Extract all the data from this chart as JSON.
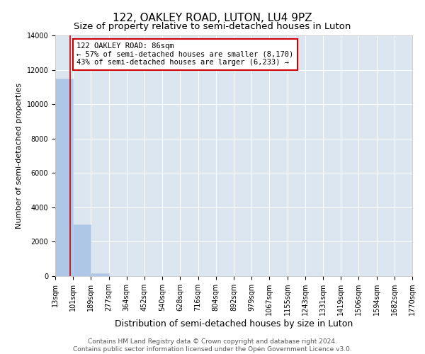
{
  "title": "122, OAKLEY ROAD, LUTON, LU4 9PZ",
  "subtitle": "Size of property relative to semi-detached houses in Luton",
  "xlabel": "Distribution of semi-detached houses by size in Luton",
  "ylabel": "Number of semi-detached properties",
  "bin_labels": [
    "13sqm",
    "101sqm",
    "189sqm",
    "277sqm",
    "364sqm",
    "452sqm",
    "540sqm",
    "628sqm",
    "716sqm",
    "804sqm",
    "892sqm",
    "979sqm",
    "1067sqm",
    "1155sqm",
    "1243sqm",
    "1331sqm",
    "1419sqm",
    "1506sqm",
    "1594sqm",
    "1682sqm",
    "1770sqm"
  ],
  "bar_values": [
    11500,
    3000,
    150,
    0,
    0,
    0,
    0,
    0,
    0,
    0,
    0,
    0,
    0,
    0,
    0,
    0,
    0,
    0,
    0,
    0
  ],
  "bar_color": "#aec6e8",
  "bar_edge_color": "#aec6e8",
  "property_value_sqm": 86,
  "property_line_color": "#cc0000",
  "annotation_text": "122 OAKLEY ROAD: 86sqm\n← 57% of semi-detached houses are smaller (8,170)\n43% of semi-detached houses are larger (6,233) →",
  "annotation_box_color": "#ffffff",
  "annotation_border_color": "#cc0000",
  "ylim": [
    0,
    14000
  ],
  "yticks": [
    0,
    2000,
    4000,
    6000,
    8000,
    10000,
    12000,
    14000
  ],
  "background_color": "#dce6f0",
  "grid_color": "#ffffff",
  "footer_line1": "Contains HM Land Registry data © Crown copyright and database right 2024.",
  "footer_line2": "Contains public sector information licensed under the Open Government Licence v3.0.",
  "title_fontsize": 11,
  "subtitle_fontsize": 9.5,
  "xlabel_fontsize": 9,
  "ylabel_fontsize": 8,
  "tick_fontsize": 7,
  "footer_fontsize": 6.5,
  "annotation_fontsize": 7.5
}
